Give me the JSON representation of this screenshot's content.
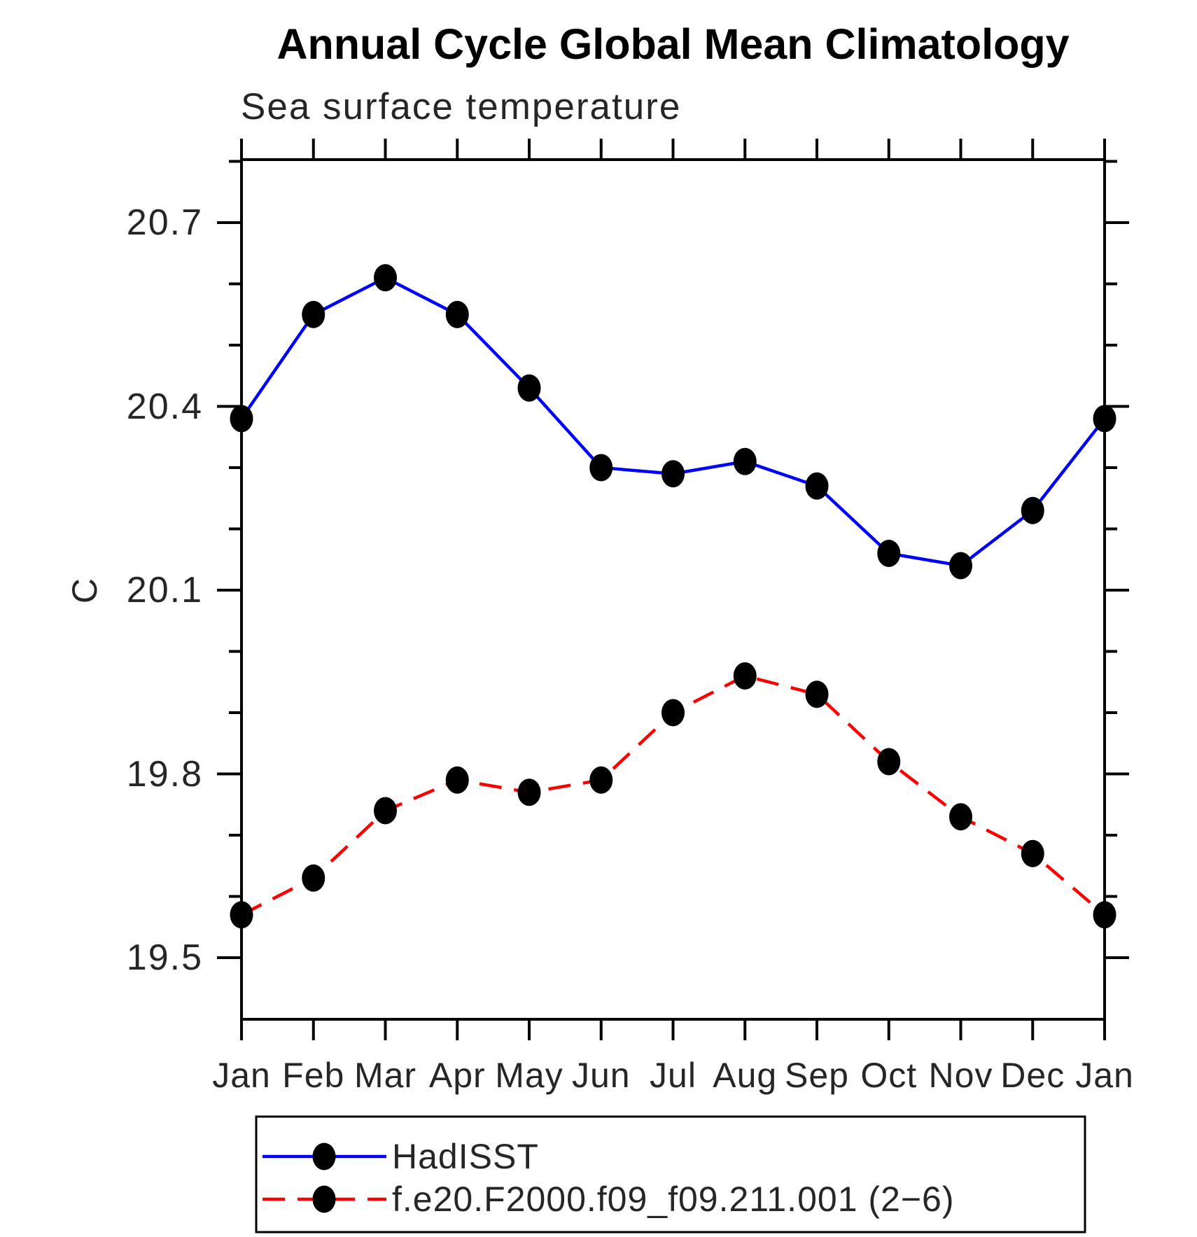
{
  "title": "Annual Cycle Global Mean Climatology",
  "subtitle": "Sea surface temperature",
  "y_axis_label": "C",
  "colors": {
    "obs_line": "#0000ff",
    "model_line": "#ff0000",
    "marker": "#000000",
    "frame": "#000000",
    "thin_text": "#262626",
    "title_text": "#000000",
    "background": "#ffffff"
  },
  "chart_data": {
    "type": "line",
    "title": "Annual Cycle Global Mean Climatology",
    "subtitle": "Sea surface temperature",
    "xlabel": "",
    "ylabel": "C",
    "categories": [
      "Jan",
      "Feb",
      "Mar",
      "Apr",
      "May",
      "Jun",
      "Jul",
      "Aug",
      "Sep",
      "Oct",
      "Nov",
      "Dec",
      "Jan"
    ],
    "y_major_ticks": [
      19.5,
      19.8,
      20.1,
      20.4,
      20.7
    ],
    "y_major_tick_labels": [
      "19.5",
      "19.8",
      "20.1",
      "20.4",
      "20.7"
    ],
    "y_minor_ticks": [
      19.6,
      19.7,
      19.9,
      20.0,
      20.2,
      20.3,
      20.5,
      20.6,
      20.8
    ],
    "ylim": [
      19.4,
      20.81
    ],
    "grid": false,
    "legend_position": "bottom",
    "series": [
      {
        "name": "HadISST",
        "color": "#0000ff",
        "line_style": "solid",
        "marker": "filled-circle",
        "values": [
          20.38,
          20.55,
          20.61,
          20.55,
          20.43,
          20.3,
          20.29,
          20.31,
          20.27,
          20.16,
          20.14,
          20.23,
          20.38
        ]
      },
      {
        "name": "f.e20.F2000.f09_f09.211.001 (2−6)",
        "color": "#ff0000",
        "line_style": "dashed",
        "marker": "filled-circle",
        "values": [
          19.57,
          19.63,
          19.74,
          19.79,
          19.77,
          19.79,
          19.9,
          19.96,
          19.93,
          19.82,
          19.73,
          19.67,
          19.57
        ]
      }
    ]
  },
  "legend": {
    "entries": [
      {
        "label": "HadISST"
      },
      {
        "label": "f.e20.F2000.f09_f09.211.001 (2−6)"
      }
    ]
  }
}
